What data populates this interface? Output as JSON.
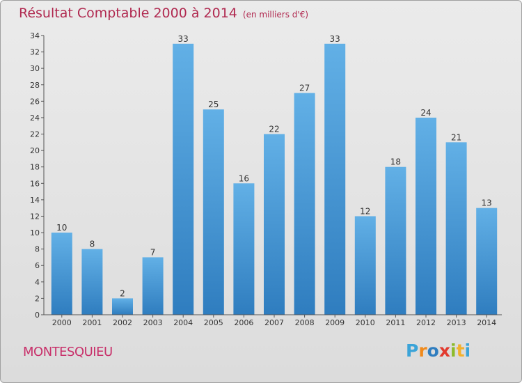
{
  "header": {
    "title": "Résultat Comptable 2000 à 2014",
    "subtitle": "(en milliers d'€)"
  },
  "footer": {
    "commune": "MONTESQUIEU",
    "logo": "Proxiti"
  },
  "colors": {
    "accent_title": "#b0284f",
    "commune": "#c8306a",
    "bar_top": "#62b0e6",
    "bar_bottom": "#2f7dbf",
    "logo_letters": [
      "#3ba4d8",
      "#f08a1c",
      "#2f7dbf",
      "#e23a2e",
      "#8dbb2b",
      "#f2b12e",
      "#3ba4d8"
    ]
  },
  "chart_data": {
    "type": "bar",
    "categories": [
      "2000",
      "2001",
      "2002",
      "2003",
      "2004",
      "2005",
      "2006",
      "2007",
      "2008",
      "2009",
      "2010",
      "2011",
      "2012",
      "2013",
      "2014"
    ],
    "values": [
      10,
      8,
      2,
      7,
      33,
      25,
      16,
      22,
      27,
      33,
      12,
      18,
      24,
      21,
      13
    ],
    "ylim": [
      0,
      34
    ],
    "yticks": [
      0,
      2,
      4,
      6,
      8,
      10,
      12,
      14,
      16,
      18,
      20,
      22,
      24,
      26,
      28,
      30,
      32,
      34
    ],
    "grid": false,
    "data_labels": true,
    "title": "Résultat Comptable 2000 à 2014",
    "xlabel": "",
    "ylabel": ""
  }
}
